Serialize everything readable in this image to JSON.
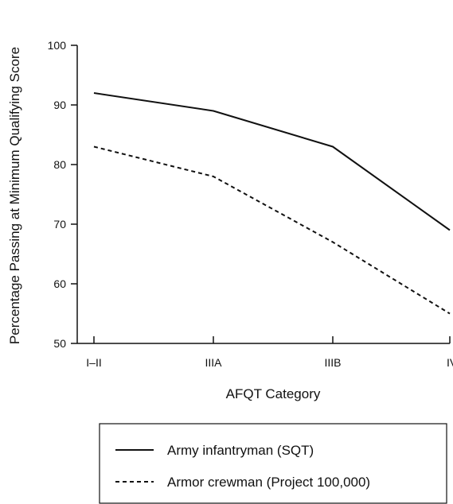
{
  "chart_data": {
    "type": "line",
    "title": "",
    "xlabel": "AFQT Category",
    "ylabel": "Percentage Passing at Minimum Qualifying Score",
    "categories": [
      "I–II",
      "IIIA",
      "IIIB",
      "IV"
    ],
    "ylim": [
      50,
      100
    ],
    "yticks": [
      "50",
      "60",
      "70",
      "80",
      "90",
      "100"
    ],
    "grid": false,
    "legend_position": "bottom",
    "series": [
      {
        "name": "Army infantryman (SQT)",
        "values": [
          92,
          89,
          83,
          69
        ],
        "style": "solid",
        "color": "#111111"
      },
      {
        "name": "Armor crewman (Project 100,000)",
        "values": [
          83,
          78,
          67,
          55
        ],
        "style": "dashed",
        "color": "#111111"
      }
    ]
  }
}
